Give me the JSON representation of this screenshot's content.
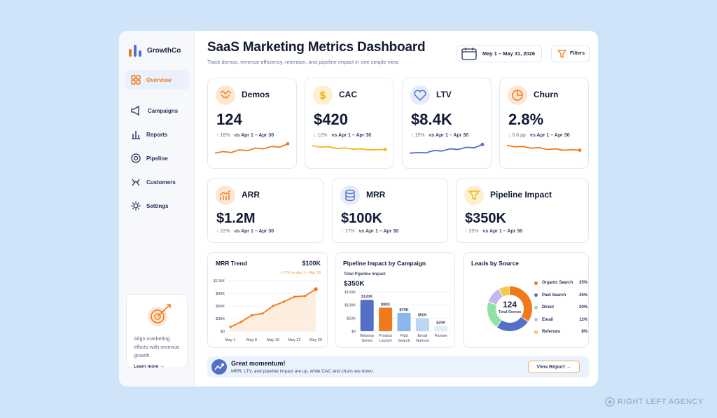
{
  "brand": {
    "name": "GrowthCo"
  },
  "sidebar": {
    "items": [
      {
        "label": "Overview",
        "icon": "grid-icon",
        "active": true
      },
      {
        "label": "Campaigns",
        "icon": "megaphone-icon"
      },
      {
        "label": "Reports",
        "icon": "bar-chart-icon"
      },
      {
        "label": "Pipeline",
        "icon": "target-icon"
      },
      {
        "label": "Customers",
        "icon": "users-icon"
      },
      {
        "label": "Settings",
        "icon": "gear-icon"
      }
    ],
    "promo": {
      "text": "Align marketing efforts with revenue growth.",
      "link": "Learn more →"
    }
  },
  "header": {
    "title": "SaaS Marketing Metrics Dashboard",
    "subtitle": "Track demos, revenue efficiency, retention, and pipeline impact in one simple view.",
    "date_range": "May 1 – May 31, 2026",
    "filters_label": "Filters"
  },
  "kpis_top": [
    {
      "label": "Demos",
      "value": "124",
      "delta": "↑ 18%",
      "compare": "vs Apr 1 – Apr 30",
      "color": "#f07a1b",
      "icon": "handshake-icon",
      "spark": [
        3,
        4,
        3.4,
        5,
        4.5,
        6,
        5.6,
        7,
        6.6,
        8.6
      ]
    },
    {
      "label": "CAC",
      "value": "$420",
      "delta": "↓ 12%",
      "compare": "vs Apr 1 – Apr 30",
      "color": "#f2b51d",
      "icon": "dollar-icon",
      "spark": [
        7.5,
        6.6,
        6.9,
        5.8,
        6.1,
        5.4,
        5.6,
        5,
        5.1,
        5.2
      ]
    },
    {
      "label": "LTV",
      "value": "$8.4K",
      "delta": "↑ 15%",
      "compare": "vs Apr 1 – Apr 30",
      "color": "#5470c6",
      "icon": "heart-icon",
      "spark": [
        3,
        3.4,
        3.2,
        4.6,
        4.3,
        5.6,
        5.2,
        6.5,
        6.2,
        8.2
      ]
    },
    {
      "label": "Churn",
      "value": "2.8%",
      "delta": "↓ 0.6 pp",
      "compare": "vs Apr 1 – Apr 30",
      "color": "#f07a1b",
      "icon": "pie-icon",
      "spark": [
        7.6,
        6.8,
        7,
        6,
        6.3,
        5.2,
        5.6,
        4.8,
        5.1,
        4.8
      ]
    }
  ],
  "kpis_mid": [
    {
      "label": "ARR",
      "value": "$1.2M",
      "delta": "↑ 22%",
      "compare": "vs Apr 1 – Apr 30",
      "color": "#f07a1b",
      "icon": "growth-icon"
    },
    {
      "label": "MRR",
      "value": "$100K",
      "delta": "↑ 17%",
      "compare": "vs Apr 1 – Apr 30",
      "color": "#5470c6",
      "icon": "coins-icon"
    },
    {
      "label": "Pipeline Impact",
      "value": "$350K",
      "delta": "↑ 25%",
      "compare": "vs Apr 1 – Apr 30",
      "color": "#f2b51d",
      "icon": "funnel-icon"
    }
  ],
  "mrr_trend": {
    "title": "MRR Trend",
    "value": "$100K",
    "delta": "+17% vs Apr 1 – Apr 30"
  },
  "pipeline_by_campaign": {
    "title": "Pipeline Impact by Campaign",
    "total_label": "Total Pipeline Impact",
    "total_value": "$350K"
  },
  "leads_by_source": {
    "title": "Leads by Source",
    "center_value": "124",
    "center_label": "Total Demos"
  },
  "chart_data": [
    {
      "type": "line",
      "title": "MRR Trend",
      "x": [
        "May 1",
        "May 4",
        "May 8",
        "May 11",
        "May 15",
        "May 18",
        "May 22",
        "May 25",
        "May 29"
      ],
      "x_ticks": [
        "May 1",
        "May 8",
        "May 15",
        "May 22",
        "May 29"
      ],
      "y": [
        10,
        22,
        38,
        42,
        60,
        70,
        82,
        84,
        100
      ],
      "y_ticks": [
        "$0",
        "$30K",
        "$60K",
        "$90K",
        "$120K"
      ],
      "ylim": [
        0,
        120
      ],
      "color": "#f07a1b"
    },
    {
      "type": "bar",
      "title": "Pipeline Impact by Campaign",
      "categories": [
        "Webinar Series",
        "Product Launch",
        "Paid Search",
        "Email Nurture",
        "Partner"
      ],
      "values": [
        120,
        90,
        70,
        50,
        20
      ],
      "value_labels": [
        "$120K",
        "$90K",
        "$70K",
        "$50K",
        "$20K"
      ],
      "colors": [
        "#5470c6",
        "#f07a1b",
        "#8cb6ee",
        "#bcd6f5",
        "#e1ecfb"
      ],
      "y_ticks": [
        "$0",
        "$50K",
        "$100K",
        "$150K"
      ],
      "ylim": [
        0,
        150
      ]
    },
    {
      "type": "pie",
      "title": "Leads by Source",
      "labels": [
        "Organic Search",
        "Paid Search",
        "Direct",
        "Email",
        "Referrals"
      ],
      "values": [
        35,
        25,
        20,
        12,
        8
      ],
      "value_labels": [
        "35%",
        "25%",
        "20%",
        "12%",
        "8%"
      ],
      "colors": [
        "#f07a1b",
        "#5470c6",
        "#8fe2a6",
        "#c3b7f3",
        "#f7c948"
      ]
    }
  ],
  "banner": {
    "title": "Great momentum!",
    "text": "MRR, LTV, and pipeline impact are up, while CAC and churn are down.",
    "button": "View Report →"
  },
  "watermark": "RIGHT LEFT AGENCY"
}
